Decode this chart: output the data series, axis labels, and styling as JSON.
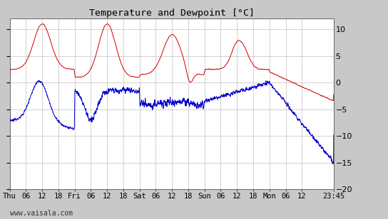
{
  "title": "Temperature and Dewpoint [°C]",
  "ylim": [
    -20,
    12
  ],
  "yticks": [
    -20,
    -15,
    -10,
    -5,
    0,
    5,
    10
  ],
  "bg_color": "#c8c8c8",
  "plot_bg_color": "#ffffff",
  "temp_color": "#cc0000",
  "dew_color": "#0000cc",
  "grid_color": "#c0c0c0",
  "watermark": "www.vaisala.com",
  "x_labels": [
    "Thu",
    "06",
    "12",
    "18",
    "Fri",
    "06",
    "12",
    "18",
    "Sat",
    "06",
    "12",
    "18",
    "Sun",
    "06",
    "12",
    "18",
    "Mon",
    "06",
    "12",
    "23:45"
  ],
  "x_label_hours": [
    0,
    6,
    12,
    18,
    24,
    30,
    36,
    42,
    48,
    54,
    60,
    66,
    72,
    78,
    84,
    90,
    96,
    102,
    108,
    119.75
  ],
  "total_hours": 119.75,
  "figsize": [
    5.44,
    3.08
  ],
  "dpi": 100
}
